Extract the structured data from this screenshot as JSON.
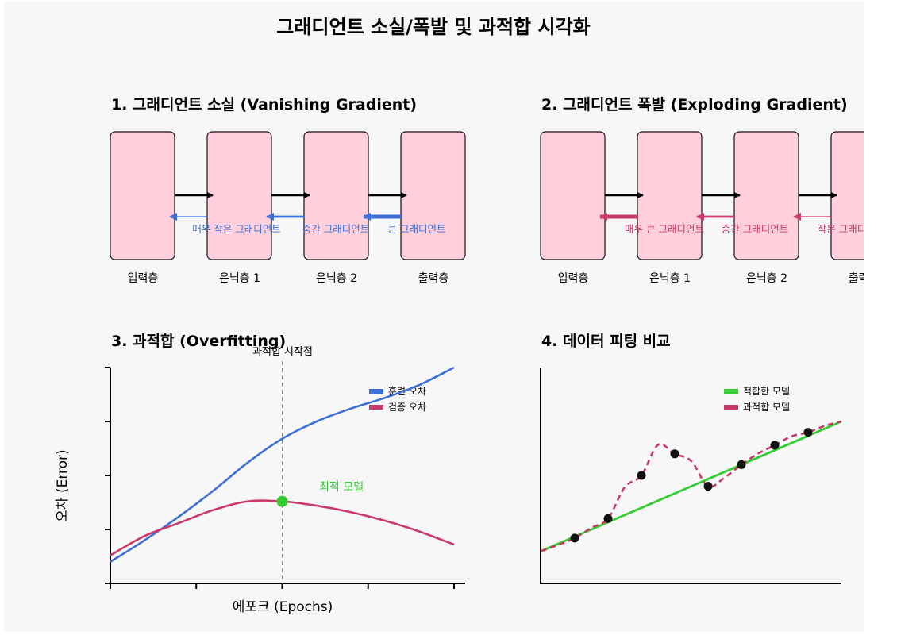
{
  "title": "그래디언트 소실/폭발 및 과적합 시각화",
  "panel1": {
    "title": "1. 그래디언트 소실 (Vanishing Gradient)",
    "layers": [
      "입력층",
      "은닉층 1",
      "은닉층 2",
      "출력층"
    ],
    "gradient_labels": [
      "매우 작은 그래디언트",
      "중간 그래디언트",
      "큰 그래디언트"
    ],
    "arrow_color": "#3d6fd6"
  },
  "panel2": {
    "title": "2. 그래디언트 폭발 (Exploding Gradient)",
    "layers": [
      "입력층",
      "은닉층 1",
      "은닉층 2",
      "출력층"
    ],
    "gradient_labels": [
      "매우 큰 그래디언트",
      "중간 그래디언트",
      "작은 그래디언트"
    ],
    "arrow_color": "#c93a67"
  },
  "panel3": {
    "title": "3. 과적합 (Overfitting)",
    "xlabel": "에포크 (Epochs)",
    "ylabel": "오차 (Error)",
    "vline_label": "과적합 시작점",
    "optimal_label": "최적 모델",
    "legend": [
      "훈련 오차",
      "검증 오차"
    ],
    "colors": {
      "train": "#3d6fd6",
      "val": "#c93a67",
      "optimal": "#33cc33"
    }
  },
  "panel4": {
    "title": "4. 데이터 피팅 비교",
    "legend": [
      "적합한 모델",
      "과적합 모델"
    ],
    "colors": {
      "good": "#33cc33",
      "over": "#c93a67",
      "points": "#111111"
    }
  },
  "chart_data": [
    {
      "type": "line",
      "title": "3. 과적합 (Overfitting)",
      "xlabel": "에포크 (Epochs)",
      "ylabel": "오차 (Error)",
      "x": [
        0,
        1,
        2,
        3,
        4,
        5,
        6,
        7,
        8,
        9,
        10
      ],
      "series": [
        {
          "name": "훈련 오차",
          "values": [
            0.1,
            0.2,
            0.31,
            0.43,
            0.56,
            0.67,
            0.75,
            0.81,
            0.86,
            0.92,
            1.0
          ]
        },
        {
          "name": "검증 오차",
          "values": [
            0.13,
            0.22,
            0.28,
            0.34,
            0.38,
            0.38,
            0.36,
            0.33,
            0.29,
            0.24,
            0.18
          ]
        }
      ],
      "xlim": [
        0,
        10
      ],
      "ylim": [
        0,
        1
      ],
      "annotations": [
        {
          "text": "과적합 시작점",
          "type": "vline",
          "x": 5
        },
        {
          "text": "최적 모델",
          "type": "point",
          "x": 5,
          "y": 0.38
        }
      ],
      "legend_position": "top-right"
    },
    {
      "type": "scatter",
      "title": "4. 데이터 피팅 비교",
      "points": {
        "x": [
          1,
          2,
          3,
          4,
          5,
          6,
          7,
          8
        ],
        "y": [
          0.21,
          0.3,
          0.5,
          0.6,
          0.45,
          0.55,
          0.64,
          0.7
        ]
      },
      "series": [
        {
          "name": "적합한 모델",
          "line": "linear",
          "x": [
            0,
            9
          ],
          "y": [
            0.15,
            0.75
          ]
        },
        {
          "name": "과적합 모델",
          "line": "wavy",
          "x": [
            0,
            1,
            2,
            3,
            4,
            5,
            6,
            7,
            8,
            9
          ],
          "y": [
            0.15,
            0.21,
            0.3,
            0.5,
            0.6,
            0.45,
            0.55,
            0.64,
            0.7,
            0.75
          ]
        }
      ],
      "legend_position": "top-right"
    }
  ]
}
